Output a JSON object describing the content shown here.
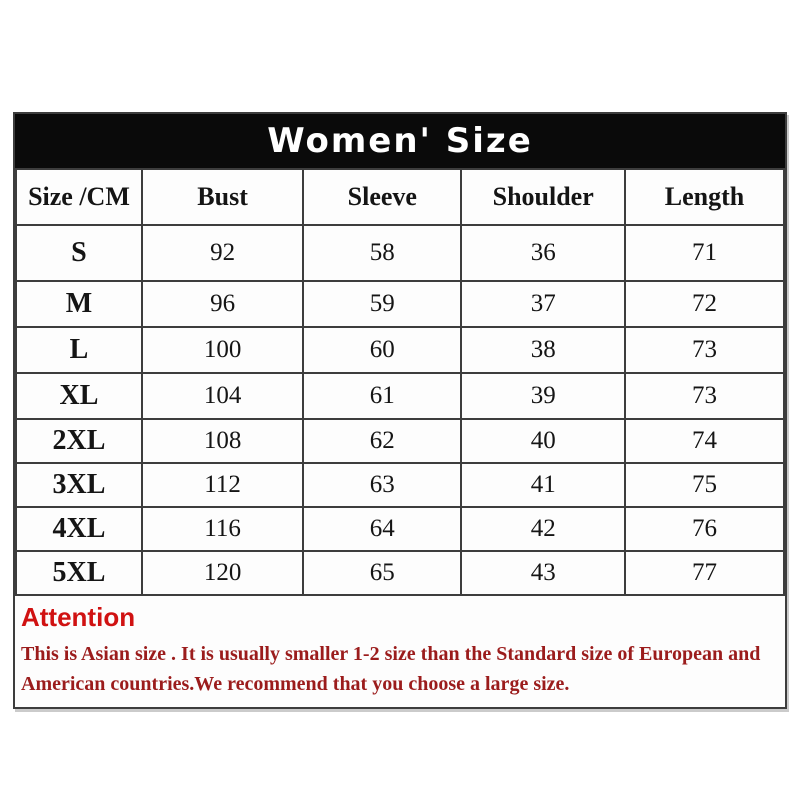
{
  "title": "Women' Size",
  "table": {
    "columns": [
      "Size /CM",
      "Bust",
      "Sleeve",
      "Shoulder",
      "Length"
    ],
    "rows": [
      [
        "S",
        "92",
        "58",
        "36",
        "71"
      ],
      [
        "M",
        "96",
        "59",
        "37",
        "72"
      ],
      [
        "L",
        "100",
        "60",
        "38",
        "73"
      ],
      [
        "XL",
        "104",
        "61",
        "39",
        "73"
      ],
      [
        "2XL",
        "108",
        "62",
        "40",
        "74"
      ],
      [
        "3XL",
        "112",
        "63",
        "41",
        "75"
      ],
      [
        "4XL",
        "116",
        "64",
        "42",
        "76"
      ],
      [
        "5XL",
        "120",
        "65",
        "43",
        "77"
      ]
    ]
  },
  "attention": {
    "heading": "Attention",
    "body": "This is Asian size . It is usually smaller 1-2 size  than the Standard size of European and American countries.We recommend that you choose a large size."
  },
  "colors": {
    "title_bar_bg": "#0a0a0a",
    "title_text": "#ffffff",
    "table_border": "#3d3d3d",
    "attention_heading": "#d01212",
    "attention_body": "#9b1c1c"
  },
  "chart_data": {
    "type": "table",
    "title": "Women' Size",
    "columns": [
      "Size /CM",
      "Bust",
      "Sleeve",
      "Shoulder",
      "Length"
    ],
    "rows": [
      [
        "S",
        92,
        58,
        36,
        71
      ],
      [
        "M",
        96,
        59,
        37,
        72
      ],
      [
        "L",
        100,
        60,
        38,
        73
      ],
      [
        "XL",
        104,
        61,
        39,
        73
      ],
      [
        "2XL",
        108,
        62,
        40,
        74
      ],
      [
        "3XL",
        112,
        63,
        41,
        75
      ],
      [
        "4XL",
        116,
        64,
        42,
        76
      ],
      [
        "5XL",
        120,
        65,
        43,
        77
      ]
    ],
    "notes": "Attention: This is Asian size . It is usually smaller 1-2 size than the Standard size of European and American countries.We recommend that you choose a large size."
  }
}
